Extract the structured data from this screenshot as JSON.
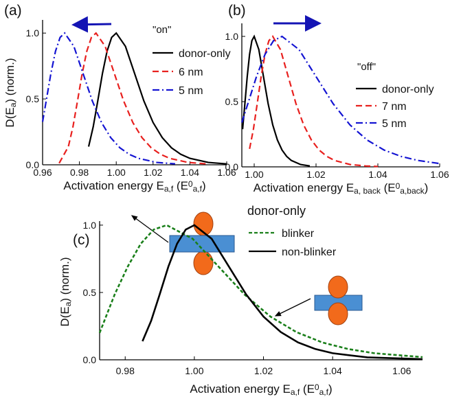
{
  "chart_data": [
    {
      "type": "line",
      "panel": "(a)",
      "note": "\"on\"",
      "xlabel": [
        "Activation energy E",
        "a,f",
        " (E",
        "0",
        "a,f",
        ")"
      ],
      "ylabel": [
        "D(E",
        "a",
        ") (norm.)"
      ],
      "xlim": [
        0.96,
        1.06
      ],
      "ylim": [
        0,
        1.1
      ],
      "xticks": [
        0.96,
        0.98,
        {
          "value": 1,
          "label": "1.00"
        },
        1.02,
        1.04,
        1.06
      ],
      "yticks": [
        {
          "value": 0,
          "label": "0.0"
        },
        {
          "value": 0.5,
          "label": "0.5"
        },
        {
          "value": 1,
          "label": "1.0"
        }
      ],
      "legend": "upper right",
      "series": [
        {
          "name": "donor-only",
          "color": "#000000",
          "style": "solid",
          "x": [
            0.985,
            0.9875,
            0.99,
            0.9925,
            0.995,
            0.9975,
            1.0,
            1.005,
            1.01,
            1.015,
            1.02,
            1.025,
            1.03,
            1.035,
            1.04,
            1.05,
            1.06
          ],
          "values": [
            0.138,
            0.289,
            0.488,
            0.693,
            0.862,
            0.967,
            1.0,
            0.899,
            0.692,
            0.485,
            0.321,
            0.206,
            0.129,
            0.08,
            0.049,
            0.018,
            0.007
          ]
        },
        {
          "name": "6 nm",
          "color": "#e8201e",
          "style": "dashed",
          "x": [
            0.969,
            0.974,
            0.9765,
            0.979,
            0.9815,
            0.984,
            0.9865,
            0.989,
            0.994,
            0.999,
            1.004,
            1.009,
            1.014,
            1.019,
            1.024,
            1.029,
            1.039,
            1.049
          ],
          "values": [
            0.012,
            0.138,
            0.289,
            0.488,
            0.693,
            0.862,
            0.967,
            1.0,
            0.899,
            0.692,
            0.485,
            0.321,
            0.206,
            0.129,
            0.08,
            0.049,
            0.018,
            0.007
          ]
        },
        {
          "name": "5 nm",
          "color": "#1414d2",
          "style": "dash-dot",
          "x": [
            0.96,
            0.9645,
            0.967,
            0.9695,
            0.972,
            0.977,
            0.982,
            0.987,
            0.992,
            0.997,
            1.002,
            1.007,
            1.012,
            1.022,
            1.032
          ],
          "values": [
            0.326,
            0.693,
            0.862,
            0.967,
            1.0,
            0.899,
            0.692,
            0.485,
            0.321,
            0.206,
            0.129,
            0.08,
            0.049,
            0.018,
            0.007
          ]
        }
      ]
    },
    {
      "type": "line",
      "panel": "(b)",
      "note": "\"off\"",
      "xlabel": [
        "Activation energy E",
        "a, back",
        " (E",
        "0",
        "a,back",
        ")"
      ],
      "xlim": [
        0.996,
        1.06
      ],
      "ylim": [
        0,
        1.1
      ],
      "xticks": [
        {
          "value": 1,
          "label": "1.00"
        },
        1.02,
        1.04,
        1.06
      ],
      "yticks": [
        {
          "value": 0,
          "label": "0.0"
        },
        {
          "value": 0.5,
          "label": "0.5"
        },
        {
          "value": 1,
          "label": "1.0"
        }
      ],
      "legend": "center right",
      "series": [
        {
          "name": "donor-only",
          "color": "#000000",
          "style": "solid",
          "x": [
            0.99625,
            0.997,
            0.99775,
            0.9985,
            0.99925,
            1.0,
            1.0015,
            1.003,
            1.0045,
            1.006,
            1.0075,
            1.009,
            1.0105,
            1.012,
            1.015,
            1.018
          ],
          "values": [
            0.289,
            0.488,
            0.693,
            0.862,
            0.967,
            1.0,
            0.899,
            0.692,
            0.485,
            0.321,
            0.206,
            0.129,
            0.08,
            0.049,
            0.018,
            0.007
          ]
        },
        {
          "name": "7 nm",
          "color": "#e8201e",
          "style": "dashed",
          "x": [
            0.9985,
            0.99975,
            1.001,
            1.00225,
            1.0035,
            1.00475,
            1.006,
            1.0085,
            1.011,
            1.0135,
            1.016,
            1.0185,
            1.021,
            1.0235,
            1.026,
            1.031,
            1.036,
            1.04
          ],
          "values": [
            0.138,
            0.289,
            0.488,
            0.693,
            0.862,
            0.967,
            1.0,
            0.899,
            0.692,
            0.485,
            0.321,
            0.206,
            0.129,
            0.08,
            0.049,
            0.018,
            0.007,
            0.003
          ]
        },
        {
          "name": "5 nm",
          "color": "#1414d2",
          "style": "dash-dot",
          "x": [
            0.996,
            0.998,
            1.00075,
            1.0035,
            1.00625,
            1.009,
            1.0145,
            1.02,
            1.0255,
            1.031,
            1.0365,
            1.042,
            1.0475,
            1.053,
            1.06
          ],
          "values": [
            0.34,
            0.488,
            0.693,
            0.862,
            0.967,
            1.0,
            0.899,
            0.692,
            0.485,
            0.321,
            0.206,
            0.129,
            0.08,
            0.049,
            0.025
          ]
        }
      ]
    },
    {
      "type": "line",
      "panel": "(c)",
      "legend_title": "donor-only",
      "xlabel": [
        "Activation energy E",
        "a,f",
        " (E",
        "0",
        "a,f",
        ")"
      ],
      "ylabel": [
        "D(E",
        "a",
        ") (norm.)"
      ],
      "xlim": [
        0.9726,
        1.066
      ],
      "ylim": [
        0,
        1.03
      ],
      "xticks": [
        0.98,
        {
          "value": 1,
          "label": "1.00"
        },
        1.02,
        1.04,
        1.06
      ],
      "yticks": [
        {
          "value": 0,
          "label": "0.0"
        },
        {
          "value": 0.5,
          "label": "0.5"
        },
        {
          "value": 1,
          "label": "1.0"
        }
      ],
      "legend": "upper right",
      "series": [
        {
          "name": "blinker",
          "color": "#1a7f1a",
          "style": "dotted",
          "x": [
            0.9726,
            0.977,
            0.98075,
            0.9845,
            0.98825,
            0.992,
            0.9995,
            1.007,
            1.0145,
            1.022,
            1.0295,
            1.037,
            1.0445,
            1.052,
            1.066
          ],
          "values": [
            0.2,
            0.488,
            0.693,
            0.862,
            0.967,
            1.0,
            0.899,
            0.692,
            0.485,
            0.321,
            0.206,
            0.129,
            0.08,
            0.049,
            0.02
          ]
        },
        {
          "name": "non-blinker",
          "color": "#000000",
          "style": "solid",
          "x": [
            0.985,
            0.9875,
            0.99,
            0.9925,
            0.995,
            0.9975,
            1.0,
            1.005,
            1.01,
            1.015,
            1.02,
            1.025,
            1.03,
            1.035,
            1.04,
            1.05,
            1.066
          ],
          "values": [
            0.138,
            0.289,
            0.488,
            0.693,
            0.862,
            0.967,
            1.0,
            0.899,
            0.692,
            0.485,
            0.321,
            0.206,
            0.129,
            0.08,
            0.049,
            0.018,
            0.005
          ]
        }
      ]
    }
  ]
}
